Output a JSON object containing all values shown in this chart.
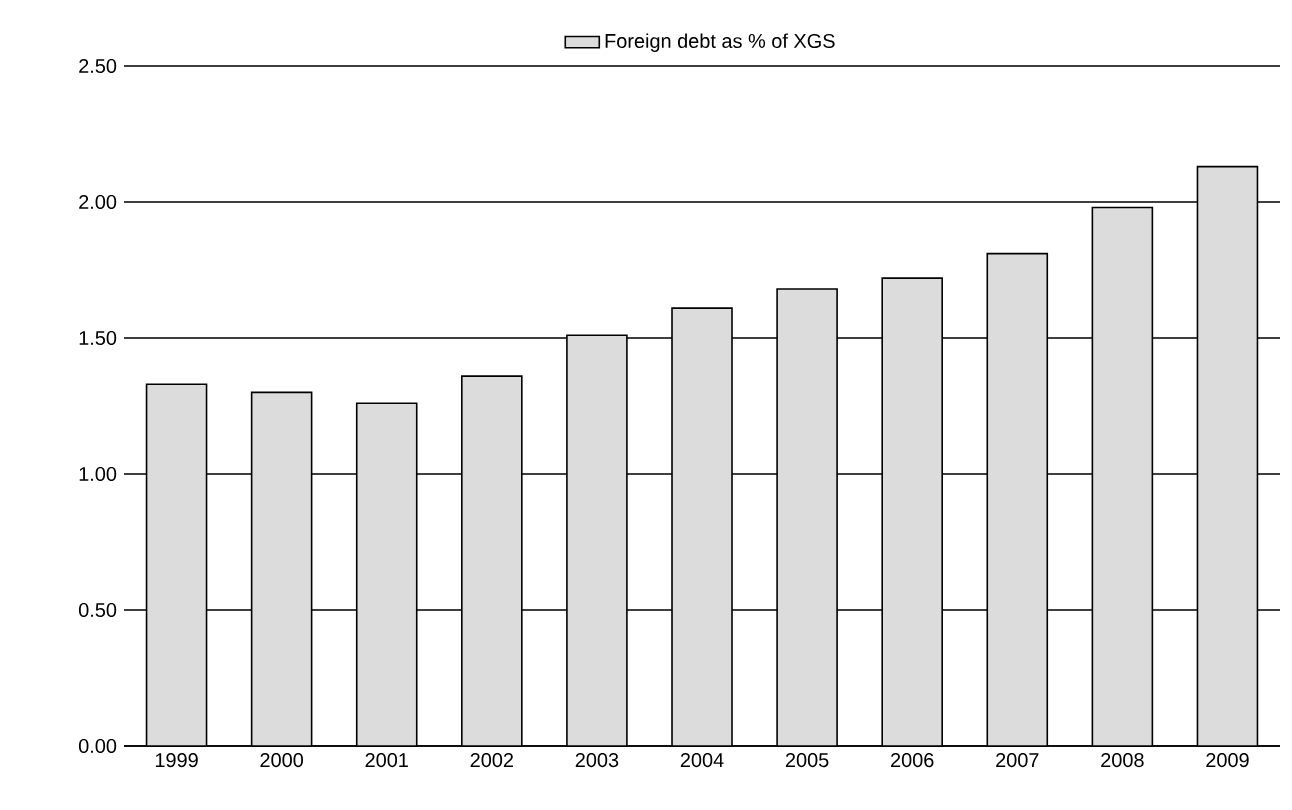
{
  "chart_data": {
    "type": "bar",
    "categories": [
      "1999",
      "2000",
      "2001",
      "2002",
      "2003",
      "2004",
      "2005",
      "2006",
      "2007",
      "2008",
      "2009"
    ],
    "series": [
      {
        "name": "Foreign debt as % of XGS",
        "color": "#dcdcdc",
        "values": [
          1.33,
          1.3,
          1.26,
          1.36,
          1.51,
          1.61,
          1.68,
          1.72,
          1.81,
          1.98,
          2.13
        ]
      }
    ],
    "ylim": [
      0,
      2.5
    ],
    "yticks": [
      {
        "value": 0,
        "label": "0.00"
      },
      {
        "value": 0.5,
        "label": "0.50"
      },
      {
        "value": 1,
        "label": "1.00"
      },
      {
        "value": 1.5,
        "label": "1.50"
      },
      {
        "value": 2,
        "label": "2.00"
      },
      {
        "value": 2.5,
        "label": "2.50"
      }
    ],
    "grid": "y",
    "legend": "top"
  }
}
